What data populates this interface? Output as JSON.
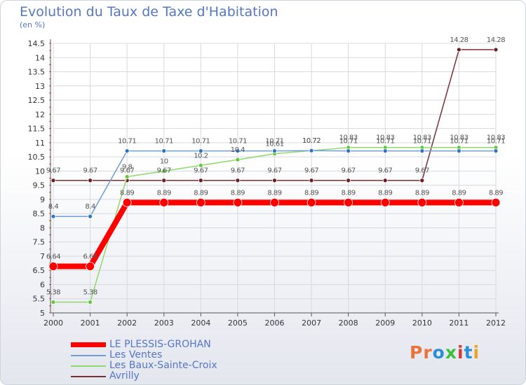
{
  "title": "Evolution du Taux de Taxe d'Habitation",
  "unit": "(en %)",
  "logo": {
    "text": "Proxiti",
    "colors": [
      "#e8743b",
      "#e8743b",
      "#2b8fd8",
      "#3cbf3c",
      "#d13d3d",
      "#2b8fd8",
      "#f0a020"
    ]
  },
  "chart_data": {
    "type": "line",
    "x": [
      "2000",
      "2001",
      "2002",
      "2003",
      "2004",
      "2005",
      "2006",
      "2007",
      "2008",
      "2009",
      "2010",
      "2011",
      "2012"
    ],
    "ylim": [
      5,
      14.5
    ],
    "yticks": [
      "5",
      "5.5",
      "6",
      "6.5",
      "7",
      "7.5",
      "8",
      "8.5",
      "9",
      "9.5",
      "10",
      "10.5",
      "11",
      "11.5",
      "12",
      "12.5",
      "13",
      "13.5",
      "14",
      "14.5"
    ],
    "grid": true,
    "legend_position": "bottom-left",
    "series": [
      {
        "name": "LE PLESSIS-GROHAN",
        "color": "#ff0000",
        "marker": "#ff0000",
        "width": 8,
        "values": [
          6.64,
          6.64,
          8.89,
          8.89,
          8.89,
          8.89,
          8.89,
          8.89,
          8.89,
          8.89,
          8.89,
          8.89,
          8.89
        ],
        "labels": [
          "6.64",
          "6.64",
          "8.89",
          "8.89",
          "8.89",
          "8.89",
          "8.89",
          "8.89",
          "8.89",
          "8.89",
          "8.89",
          "8.89",
          "8.89"
        ]
      },
      {
        "name": "Les Ventes",
        "color": "#6f9ed6",
        "marker": "#2e73c0",
        "width": 1.5,
        "values": [
          8.4,
          8.4,
          10.71,
          10.71,
          10.71,
          10.71,
          10.71,
          10.72,
          10.71,
          10.71,
          10.71,
          10.71,
          10.71
        ],
        "labels": [
          "8.4",
          "8.4",
          "10.71",
          "10.71",
          "10.71",
          "10.71",
          "10.71",
          "10.72",
          "10.71",
          "10.71",
          "10.71",
          "10.71",
          "10.71"
        ]
      },
      {
        "name": "Les Baux-Sainte-Croix",
        "color": "#8fd86a",
        "marker": "#62c83a",
        "width": 1.5,
        "values": [
          5.38,
          5.38,
          9.8,
          10,
          10.2,
          10.4,
          10.61,
          10.72,
          10.83,
          10.83,
          10.83,
          10.83,
          10.83
        ],
        "labels": [
          "5.38",
          "5.38",
          "9.8",
          "10",
          "10.2",
          "10.4",
          "10.61",
          "10.72",
          "10.83",
          "10.83",
          "10.83",
          "10.83",
          "10.83"
        ]
      },
      {
        "name": "Avrilly",
        "color": "#7a2e34",
        "marker": "#6b1c22",
        "width": 1.5,
        "values": [
          9.67,
          9.67,
          9.67,
          9.67,
          9.67,
          9.67,
          9.67,
          9.67,
          9.67,
          9.67,
          9.67,
          14.28,
          14.28
        ],
        "labels": [
          "9.67",
          "9.67",
          "9.67",
          "9.67",
          "9.67",
          "9.67",
          "9.67",
          "9.67",
          "9.67",
          "9.67",
          "9.67",
          "14.28",
          "14.28"
        ]
      }
    ]
  }
}
